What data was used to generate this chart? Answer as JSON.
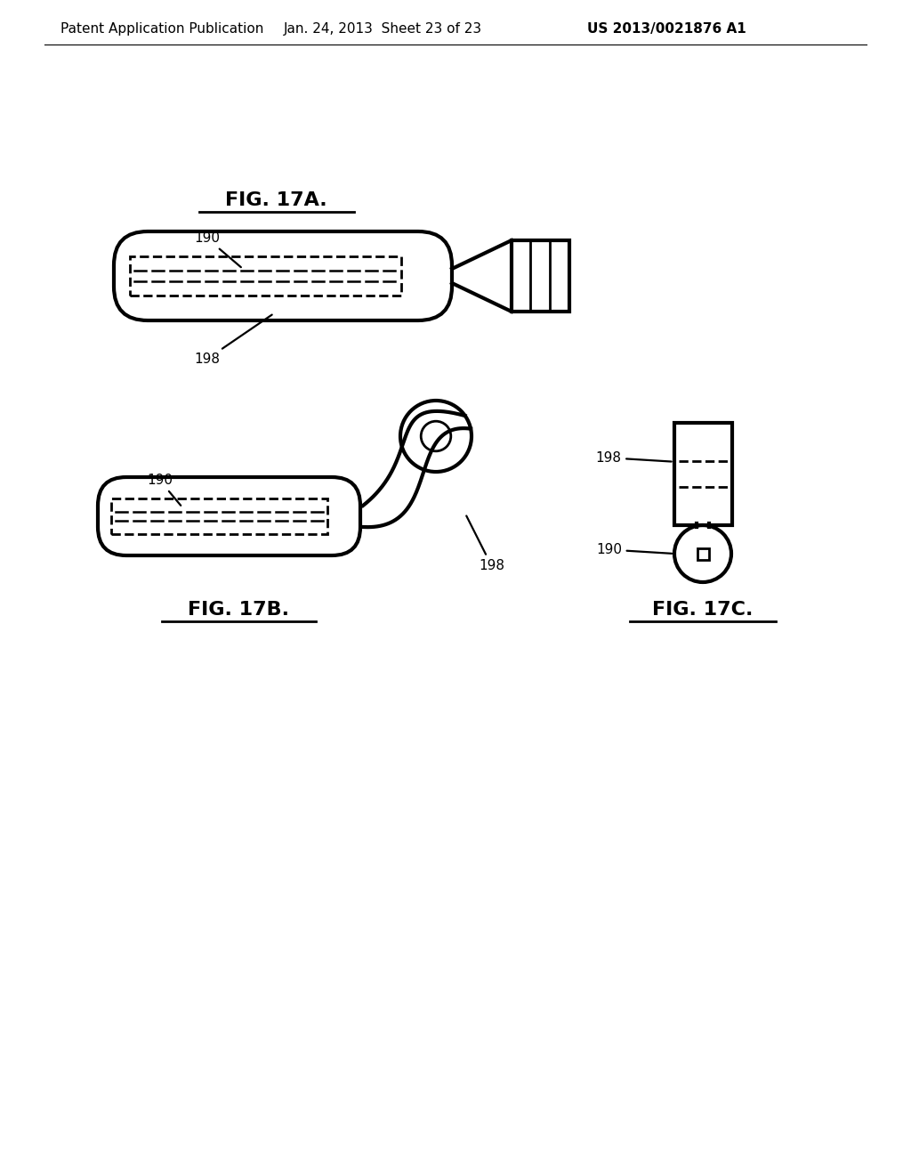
{
  "bg_color": "#ffffff",
  "header_left": "Patent Application Publication",
  "header_center": "Jan. 24, 2013  Sheet 23 of 23",
  "header_right": "US 2013/0021876 A1",
  "fig17a_title": "FIG. 17A.",
  "fig17b_title": "FIG. 17B.",
  "fig17c_title": "FIG. 17C.",
  "label_190": "190",
  "label_198": "198",
  "line_color": "#000000",
  "line_width": 2.0,
  "header_fontsize": 11,
  "title_fontsize": 16
}
